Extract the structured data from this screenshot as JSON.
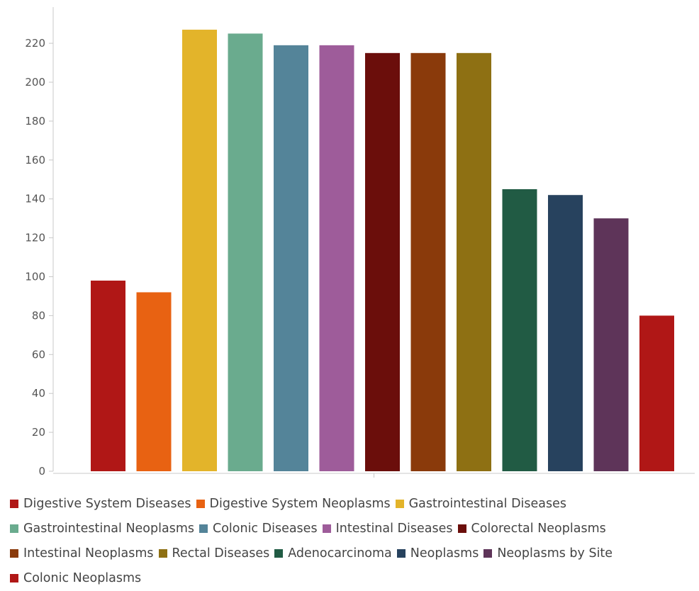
{
  "chart_data": {
    "type": "bar",
    "title": "",
    "xlabel": "",
    "ylabel": "",
    "ylim": [
      0,
      235
    ],
    "yticks": [
      0,
      20,
      40,
      60,
      80,
      100,
      120,
      140,
      160,
      180,
      200,
      220
    ],
    "grid": false,
    "legend_position": "bottom",
    "categories": [
      "Digestive System Diseases",
      "Digestive System Neoplasms",
      "Gastrointestinal Diseases",
      "Gastrointestinal Neoplasms",
      "Colonic Diseases",
      "Intestinal Diseases",
      "Colorectal Neoplasms",
      "Intestinal Neoplasms",
      "Rectal Diseases",
      "Adenocarcinoma",
      "Neoplasms",
      "Neoplasms by Site",
      "Colonic Neoplasms"
    ],
    "values": [
      98,
      92,
      227,
      225,
      219,
      219,
      215,
      215,
      215,
      145,
      142,
      130,
      80
    ],
    "colors": [
      "#b01716",
      "#e86212",
      "#e3b42a",
      "#6aab8e",
      "#548499",
      "#9e5c9a",
      "#6b0e0b",
      "#8a3a0b",
      "#8e7013",
      "#215b44",
      "#27425e",
      "#5e3459",
      "#b01716"
    ]
  }
}
